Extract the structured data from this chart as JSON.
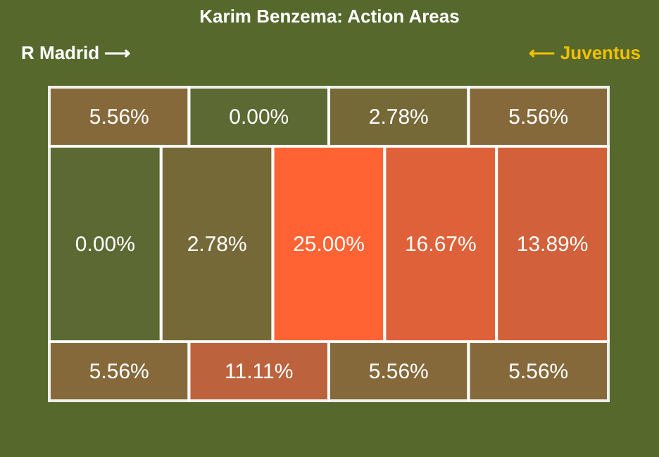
{
  "chart_data": {
    "type": "other",
    "title": "Karim Benzema: Action Areas",
    "values": [
      5.56,
      0.0,
      2.78,
      5.56,
      0.0,
      2.78,
      25.0,
      16.67,
      13.89,
      5.56,
      11.11,
      5.56,
      5.56
    ],
    "value_labels": [
      "5.56%",
      "0.00%",
      "2.78%",
      "5.56%",
      "0.00%",
      "2.78%",
      "25.00%",
      "16.67%",
      "13.89%",
      "5.56%",
      "11.11%",
      "5.56%",
      "5.56%"
    ],
    "colors": [
      "#8a6a3c",
      "#5d6a35",
      "#7a6a3a",
      "#8a6a3c",
      "#5d6a35",
      "#7a6a3a",
      "#ff6333",
      "#e5613a",
      "#d9603c",
      "#8a6a3c",
      "#c4623e",
      "#8a6a3c",
      "#8a6a3c"
    ],
    "annotations": [
      "R Madrid ⟶",
      "⟵ Juventus"
    ]
  }
}
